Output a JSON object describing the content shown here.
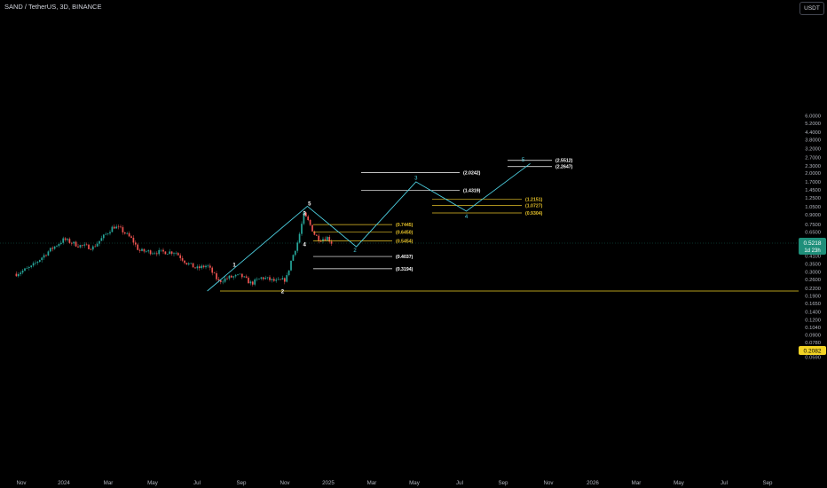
{
  "header": {
    "symbol_title": "SAND / TetherUS, 3D, BINANCE",
    "currency_button": "USDT"
  },
  "price_tags": {
    "current_price": "0.5218",
    "countdown": "1d 23h",
    "support_price": "0.2082"
  },
  "colors": {
    "background": "#000000",
    "up_candle": "#26a69a",
    "down_candle": "#ef5350",
    "wave_line": "#4dd0e1",
    "fib_white": "#ffffff",
    "fib_yellow": "#e6c229",
    "support_line": "#f2d325",
    "current_price_tag": "#1e8f7a"
  },
  "chart_data": {
    "type": "candlestick",
    "x_tick_labels": [
      "Nov",
      "2024",
      "Mar",
      "May",
      "Jul",
      "Sep",
      "Nov",
      "2025",
      "Mar",
      "May",
      "Jul",
      "Sep",
      "Nov",
      "2026",
      "Mar",
      "May",
      "Jul",
      "Sep"
    ],
    "y_scale": "log",
    "y_tick_labels": [
      "6.0000",
      "5.2000",
      "4.4000",
      "3.8000",
      "3.2000",
      "2.7000",
      "2.3000",
      "2.0000",
      "1.7000",
      "1.4500",
      "1.2500",
      "1.0500",
      "0.9000",
      "0.7500",
      "0.6500",
      "0.5500",
      "0.4700",
      "0.4100",
      "0.3500",
      "0.3000",
      "0.2600",
      "0.2200",
      "0.1900",
      "0.1650",
      "0.1400",
      "0.1200",
      "0.1040",
      "0.0900",
      "0.0780",
      "0.0680",
      "0.0590"
    ],
    "ylim": [
      0.0565,
      6.4
    ],
    "price_path": [
      [
        "2023-10-25",
        0.29
      ],
      [
        "2023-11-15",
        0.33
      ],
      [
        "2023-12-10",
        0.45
      ],
      [
        "2023-12-31",
        0.56
      ],
      [
        "2024-01-20",
        0.5
      ],
      [
        "2024-02-10",
        0.48
      ],
      [
        "2024-03-10",
        0.72
      ],
      [
        "2024-03-20",
        0.68
      ],
      [
        "2024-04-05",
        0.56
      ],
      [
        "2024-04-15",
        0.45
      ],
      [
        "2024-05-05",
        0.44
      ],
      [
        "2024-06-05",
        0.44
      ],
      [
        "2024-06-20",
        0.36
      ],
      [
        "2024-07-05",
        0.32
      ],
      [
        "2024-07-20",
        0.34
      ],
      [
        "2024-08-05",
        0.25
      ],
      [
        "2024-08-20",
        0.27
      ],
      [
        "2024-09-05",
        0.28
      ],
      [
        "2024-09-20",
        0.24
      ],
      [
        "2024-10-05",
        0.27
      ],
      [
        "2024-10-25",
        0.25
      ],
      [
        "2024-11-08",
        0.26
      ],
      [
        "2024-11-15",
        0.37
      ],
      [
        "2024-11-25",
        0.55
      ],
      [
        "2024-12-03",
        0.9
      ],
      [
        "2024-12-10",
        0.78
      ],
      [
        "2024-12-18",
        0.62
      ],
      [
        "2024-12-25",
        0.56
      ],
      [
        "2025-01-05",
        0.58
      ],
      [
        "2025-01-12",
        0.52
      ]
    ],
    "wave_counts": [
      {
        "label": "1",
        "date": "2024-08-27",
        "price": 0.344
      },
      {
        "label": "2",
        "date": "2024-11-03",
        "price": 0.207
      },
      {
        "label": "3",
        "date": "2024-12-04",
        "price": 0.92
      },
      {
        "label": "4",
        "date": "2024-12-04",
        "price": 0.51
      },
      {
        "label": "5",
        "date": "2024-12-11",
        "price": 1.11
      },
      {
        "label": "2",
        "date": "2025-02-13",
        "price": 0.455
      },
      {
        "label": "3",
        "date": "2025-05-10",
        "price": 1.82
      },
      {
        "label": "4",
        "date": "2025-07-20",
        "price": 0.87
      },
      {
        "label": "5",
        "date": "2025-10-08",
        "price": 2.58
      }
    ],
    "projection_path": [
      [
        "2024-07-20",
        0.208
      ],
      [
        "2024-12-08",
        1.06
      ],
      [
        "2025-02-15",
        0.487
      ],
      [
        "2025-05-10",
        1.69
      ],
      [
        "2025-07-20",
        0.963
      ],
      [
        "2025-10-18",
        2.4
      ]
    ],
    "fib_levels": [
      {
        "label": "(2.5512)",
        "value": 2.5512,
        "color": "white"
      },
      {
        "label": "(2.2647)",
        "value": 2.2647,
        "color": "white"
      },
      {
        "label": "(2.0242)",
        "value": 2.0242,
        "color": "white"
      },
      {
        "label": "(1.4319)",
        "value": 1.4319,
        "color": "white"
      },
      {
        "label": "(1.2151)",
        "value": 1.2151,
        "color": "yellow"
      },
      {
        "label": "(1.0727)",
        "value": 1.0727,
        "color": "yellow"
      },
      {
        "label": "(0.9304)",
        "value": 0.9304,
        "color": "yellow"
      },
      {
        "label": "(0.7445)",
        "value": 0.7445,
        "color": "yellow"
      },
      {
        "label": "(0.6450)",
        "value": 0.645,
        "color": "yellow"
      },
      {
        "label": "(0.5454)",
        "value": 0.5454,
        "color": "yellow"
      },
      {
        "label": "(0.4037)",
        "value": 0.4037,
        "color": "white"
      },
      {
        "label": "(0.3194)",
        "value": 0.3194,
        "color": "white"
      }
    ],
    "support_level": 0.2082,
    "current_price": 0.5218
  }
}
